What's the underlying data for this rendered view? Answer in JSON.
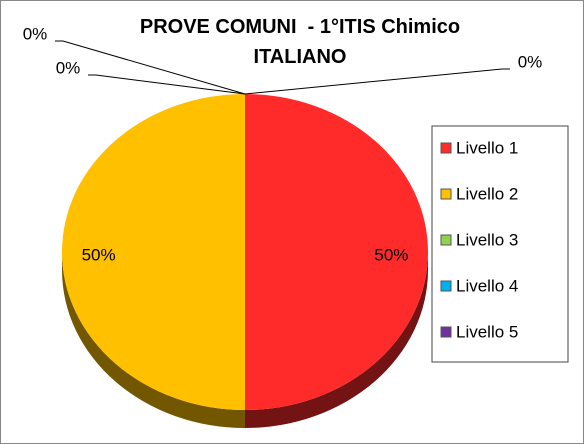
{
  "chart_data": {
    "type": "pie",
    "title": "PROVE COMUNI  - 1°ITIS Chimico ITALIANO",
    "categories": [
      "Livello 1",
      "Livello 2",
      "Livello 3",
      "Livello 4",
      "Livello 5"
    ],
    "values": [
      50,
      50,
      0,
      0,
      0
    ],
    "value_labels": [
      "50%",
      "50%",
      "0%",
      "0%",
      "0%"
    ],
    "colors": [
      "#ff2a2a",
      "#ffc000",
      "#92d050",
      "#00b0f0",
      "#7030a0"
    ],
    "legend": "right"
  }
}
